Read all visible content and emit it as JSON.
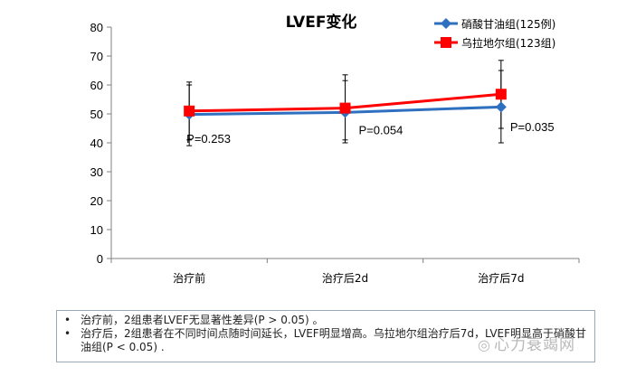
{
  "chart_data": {
    "type": "line",
    "title": "LVEF变化",
    "categories": [
      "治疗前",
      "治疗后2d",
      "治疗后7d"
    ],
    "ylim": [
      0,
      80
    ],
    "yticks": [
      0,
      10,
      20,
      30,
      40,
      50,
      60,
      70,
      80
    ],
    "grid": false,
    "legend_position": "top-right",
    "series": [
      {
        "name": "硝酸甘油组(125例)",
        "color": "#2f6fbf",
        "marker": "diamond",
        "values": [
          49.8,
          50.5,
          52.4
        ],
        "error_low": [
          39,
          40,
          40
        ],
        "error_high": [
          60,
          61.5,
          65
        ]
      },
      {
        "name": "乌拉地尔组(123组)",
        "color": "#ff0000",
        "marker": "square",
        "values": [
          51,
          52,
          56.8
        ],
        "error_low": [
          41,
          41,
          45
        ],
        "error_high": [
          61,
          63.5,
          68.5
        ]
      }
    ],
    "annotations": [
      "P=0.253",
      "P=0.054",
      "P=0.035"
    ]
  },
  "notes": [
    {
      "bullet": "•",
      "text": "治疗前，2组患者LVEF无显著性差异(P > 0.05) 。"
    },
    {
      "bullet": "•",
      "text": "治疗后，2组患者在不同时间点随时间延长，LVEF明显增高。乌拉地尔组治疗后7d，LVEF明显高于硝酸甘油组(P < 0.05) ."
    }
  ],
  "watermark": {
    "icon": "wechat-icon",
    "text": "心力衰竭网"
  }
}
